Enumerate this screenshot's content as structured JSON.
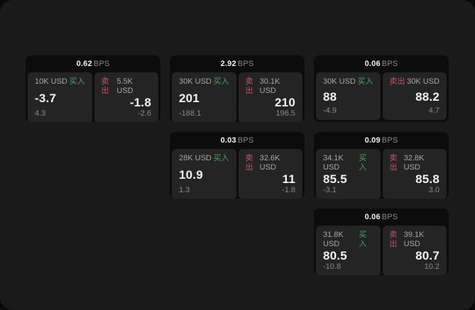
{
  "labels": {
    "buy": "买入",
    "sell": "卖出",
    "bps_unit": "BPS"
  },
  "colors": {
    "panel_bg": "#1a1a1a",
    "card_bg": "#0c0c0c",
    "tile_bg": "#242424",
    "buy_green": "#46a35e",
    "sell_red": "#c25460",
    "value_white": "#f2f2f2",
    "muted_gray": "#8a8a8a"
  },
  "cards": [
    {
      "bps": "0.62",
      "buy": {
        "amount": "10K USD",
        "value": "-3.7",
        "sub": "4.3"
      },
      "sell": {
        "amount": "5.5K USD",
        "value": "-1.8",
        "sub": "-2.6"
      }
    },
    {
      "bps": "2.92",
      "buy": {
        "amount": "30K USD",
        "value": "201",
        "sub": "-188.1"
      },
      "sell": {
        "amount": "30.1K USD",
        "value": "210",
        "sub": "196.5"
      }
    },
    {
      "bps": "0.06",
      "buy": {
        "amount": "30K USD",
        "value": "88",
        "sub": "-4.9"
      },
      "sell": {
        "amount": "30K USD",
        "value": "88.2",
        "sub": "4.7"
      }
    },
    {
      "bps": "0.03",
      "buy": {
        "amount": "28K USD",
        "value": "10.9",
        "sub": "1.3"
      },
      "sell": {
        "amount": "32.6K USD",
        "value": "11",
        "sub": "-1.8"
      }
    },
    {
      "bps": "0.09",
      "buy": {
        "amount": "34.1K USD",
        "value": "85.5",
        "sub": "-3.1"
      },
      "sell": {
        "amount": "32.8K USD",
        "value": "85.8",
        "sub": "3.0"
      }
    },
    {
      "bps": "0.06",
      "buy": {
        "amount": "31.8K USD",
        "value": "80.5",
        "sub": "-10.8"
      },
      "sell": {
        "amount": "39.1K USD",
        "value": "80.7",
        "sub": "10.2"
      }
    }
  ]
}
